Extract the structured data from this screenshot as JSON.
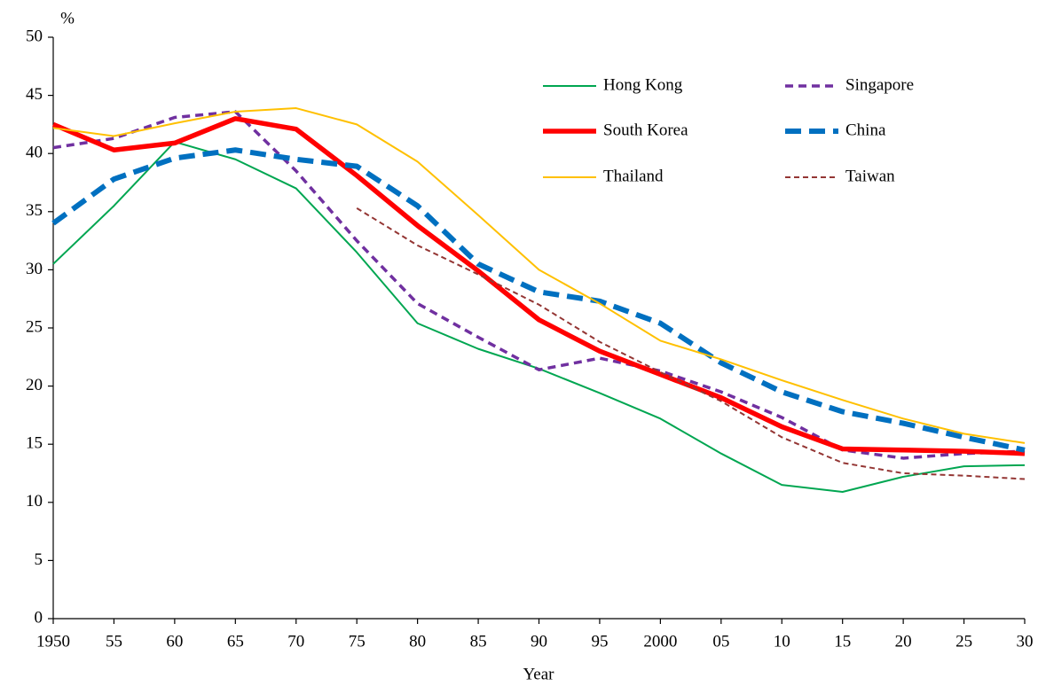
{
  "chart_data": {
    "type": "line",
    "y_label": "%",
    "x_label": "Year",
    "x": [
      1950,
      1955,
      1960,
      1965,
      1970,
      1975,
      1980,
      1985,
      1990,
      1995,
      2000,
      2005,
      2010,
      2015,
      2020,
      2025,
      2030
    ],
    "xlim": [
      1950,
      2030
    ],
    "xticks": [
      {
        "value": 1950,
        "label": "1950"
      },
      {
        "value": 1955,
        "label": "55"
      },
      {
        "value": 1960,
        "label": "60"
      },
      {
        "value": 1965,
        "label": "65"
      },
      {
        "value": 1970,
        "label": "70"
      },
      {
        "value": 1975,
        "label": "75"
      },
      {
        "value": 1980,
        "label": "80"
      },
      {
        "value": 1985,
        "label": "85"
      },
      {
        "value": 1990,
        "label": "90"
      },
      {
        "value": 1995,
        "label": "95"
      },
      {
        "value": 2000,
        "label": "2000"
      },
      {
        "value": 2005,
        "label": "05"
      },
      {
        "value": 2010,
        "label": "10"
      },
      {
        "value": 2015,
        "label": "15"
      },
      {
        "value": 2020,
        "label": "20"
      },
      {
        "value": 2025,
        "label": "25"
      },
      {
        "value": 2030,
        "label": "30"
      }
    ],
    "ylim": [
      0,
      50
    ],
    "yticks": [
      0,
      5,
      10,
      15,
      20,
      25,
      30,
      35,
      40,
      45,
      50
    ],
    "grid": false,
    "series": [
      {
        "name": "Hong Kong",
        "color": "#00a651",
        "values": [
          30.5,
          35.5,
          41.0,
          39.5,
          37.0,
          31.5,
          25.4,
          23.2,
          21.5,
          19.4,
          17.2,
          14.2,
          11.5,
          10.9,
          12.2,
          13.1,
          13.2
        ]
      },
      {
        "name": "Singapore",
        "color": "#7030a0",
        "values": [
          40.5,
          41.3,
          43.1,
          43.6,
          38.5,
          32.5,
          27.1,
          24.2,
          21.4,
          22.4,
          21.3,
          19.5,
          17.3,
          14.5,
          13.8,
          14.2,
          14.4
        ]
      },
      {
        "name": "South Korea",
        "color": "#ff0000",
        "values": [
          42.5,
          40.3,
          40.9,
          43.0,
          42.1,
          38.1,
          33.8,
          29.9,
          25.7,
          23.0,
          21.0,
          19.0,
          16.5,
          14.6,
          14.5,
          14.4,
          14.2
        ]
      },
      {
        "name": "China",
        "color": "#0070c0",
        "values": [
          34.0,
          37.8,
          39.6,
          40.3,
          39.5,
          38.9,
          35.5,
          30.5,
          28.1,
          27.3,
          25.4,
          22.0,
          19.5,
          17.8,
          16.8,
          15.6,
          14.5
        ]
      },
      {
        "name": "Thailand",
        "color": "#ffc000",
        "values": [
          42.2,
          41.5,
          42.6,
          43.6,
          43.9,
          42.5,
          39.3,
          34.7,
          30.0,
          27.1,
          23.9,
          22.3,
          20.5,
          18.8,
          17.2,
          15.9,
          15.1
        ]
      },
      {
        "name": "Taiwan",
        "color": "#943634",
        "values": [
          null,
          null,
          null,
          null,
          null,
          35.3,
          32.1,
          29.6,
          27.0,
          23.8,
          21.2,
          18.7,
          15.6,
          13.4,
          12.5,
          12.3,
          12.0
        ]
      }
    ]
  }
}
